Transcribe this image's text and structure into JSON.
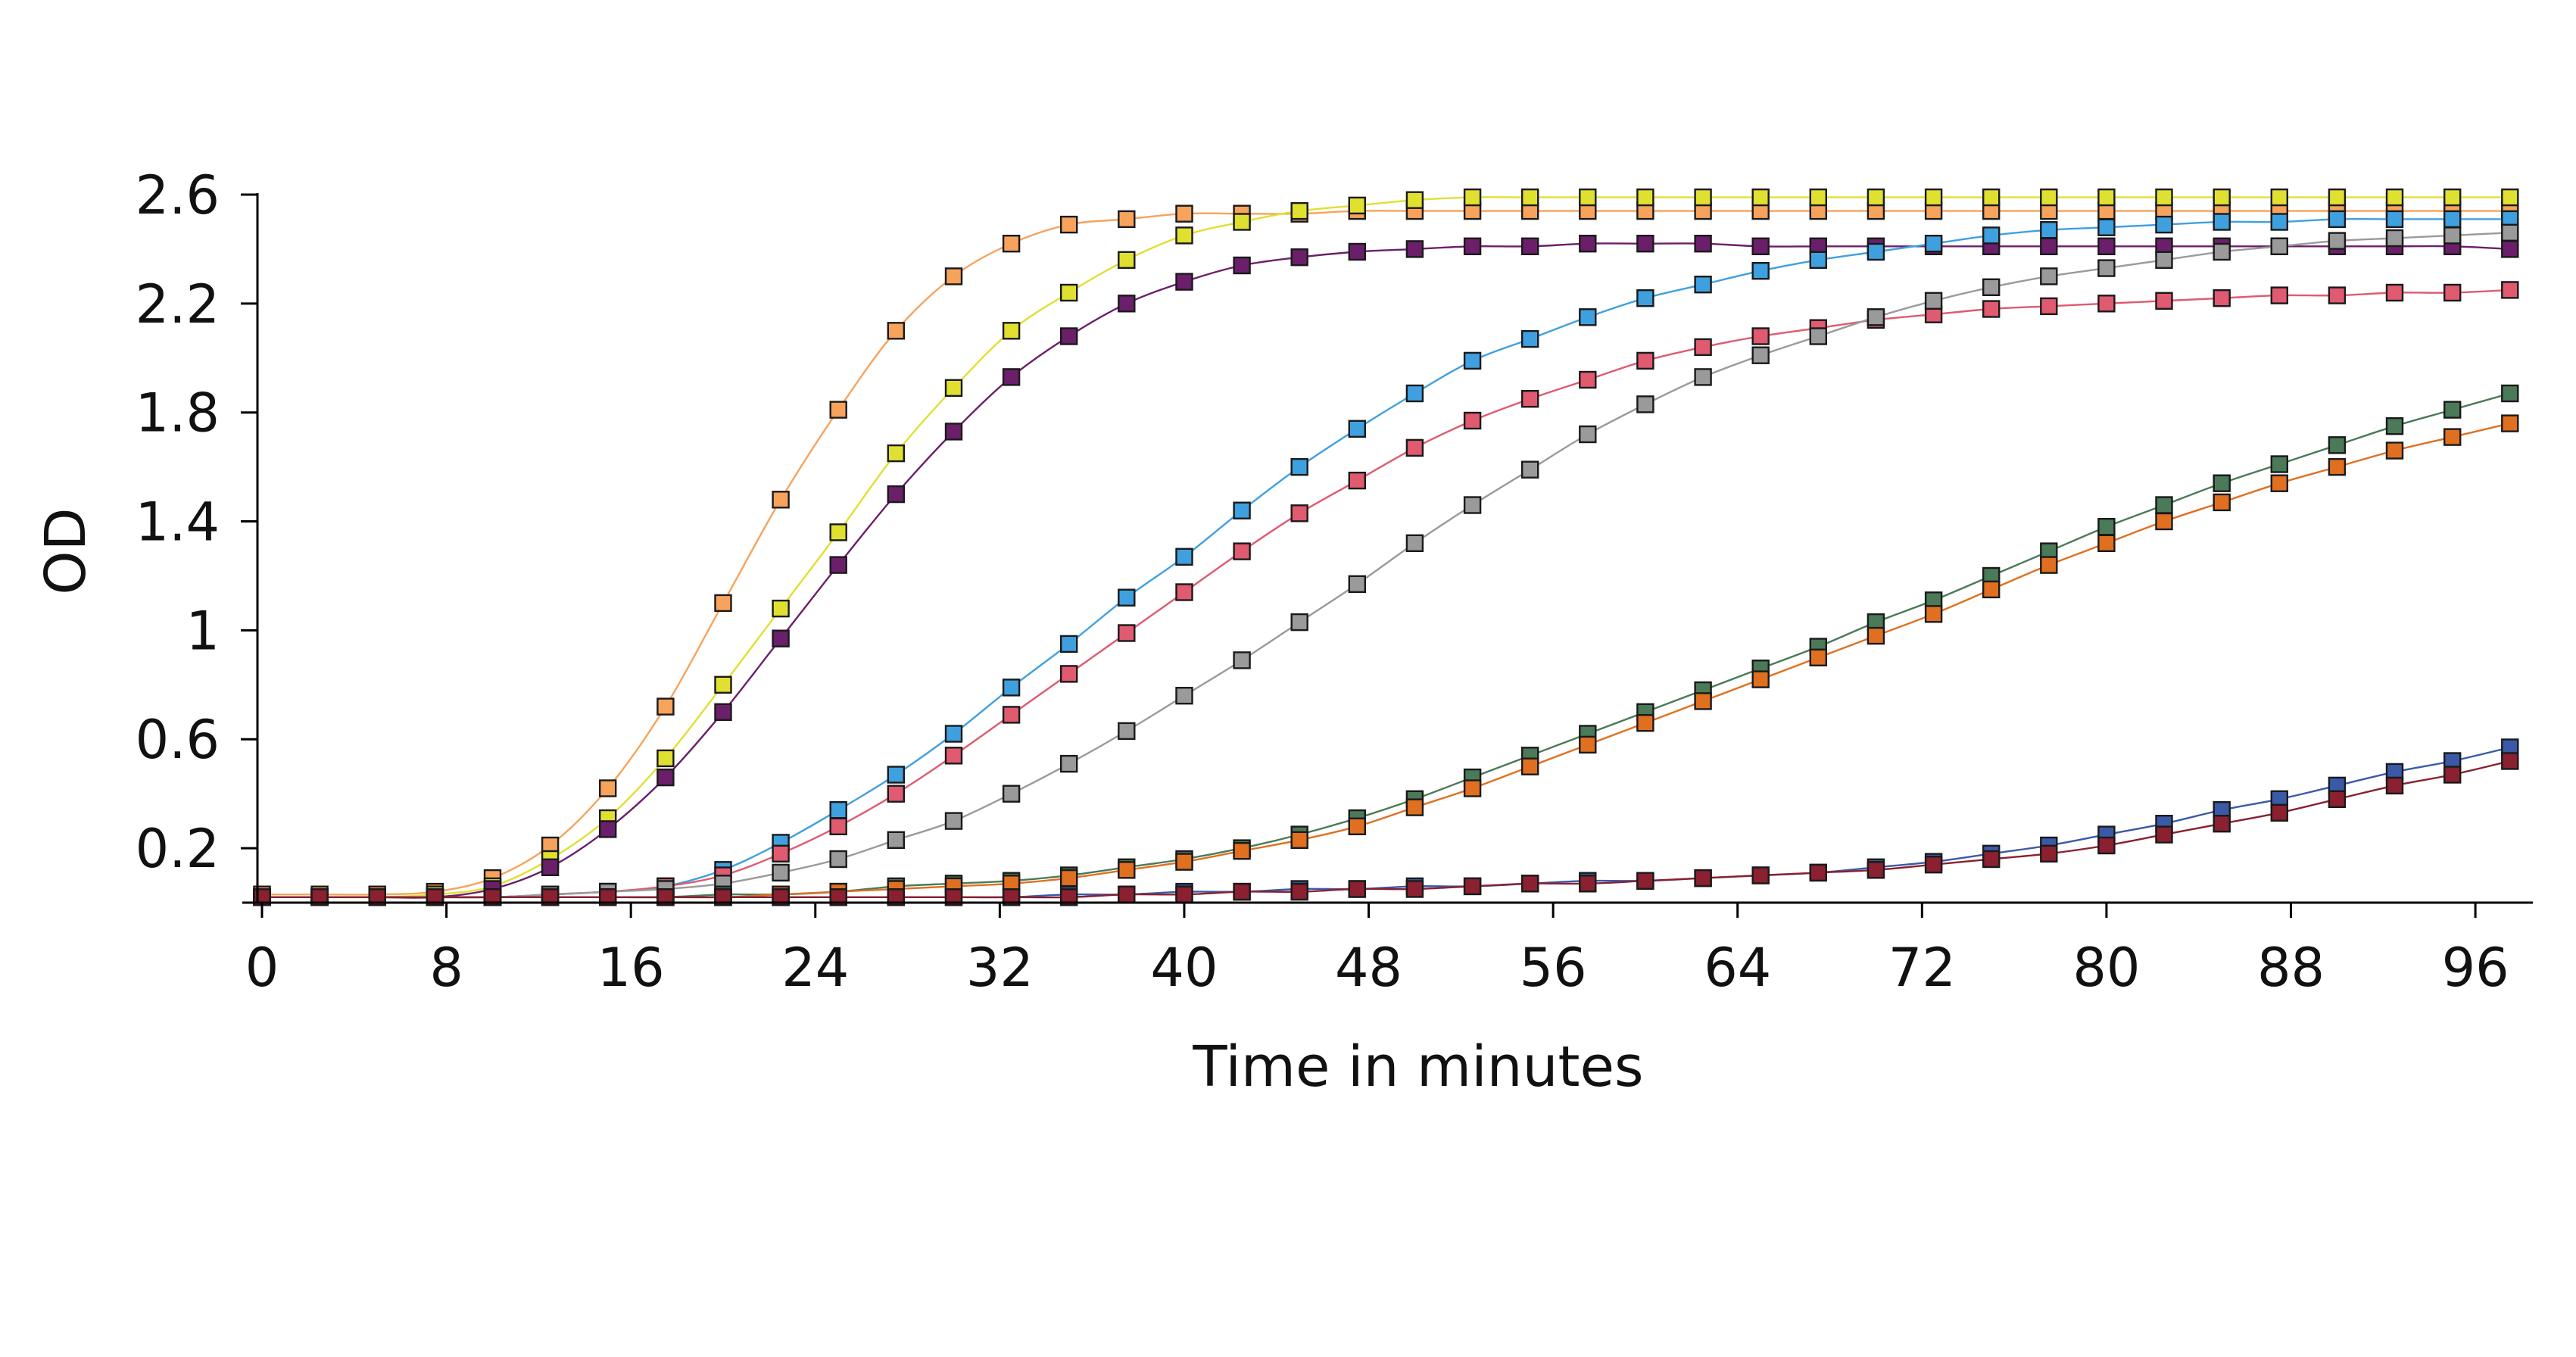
{
  "chart_data": {
    "type": "line",
    "title": "",
    "xlabel": "Time in minutes",
    "ylabel": "OD",
    "xlim": [
      0,
      98
    ],
    "ylim": [
      0,
      2.6
    ],
    "xticks": [
      0,
      8,
      16,
      24,
      32,
      40,
      48,
      56,
      64,
      72,
      80,
      88,
      96
    ],
    "yticks": [
      0.2,
      0.6,
      1,
      1.4,
      1.8,
      2.2,
      2.6
    ],
    "ytick_labels": [
      "0.2",
      "0.6",
      "1",
      "1.4",
      "1.8",
      "2.2",
      "2.6"
    ],
    "grid": false,
    "legend": "none",
    "marker": "square",
    "x": [
      0,
      2.5,
      5,
      7.5,
      10,
      12.5,
      15,
      17.5,
      20,
      22.5,
      25,
      27.5,
      30,
      32.5,
      35,
      37.5,
      40,
      42.5,
      45,
      47.5,
      50,
      52.5,
      55,
      57.5,
      60,
      62.5,
      65,
      67.5,
      70,
      72.5,
      75,
      77.5,
      80,
      82.5,
      85,
      87.5,
      90,
      92.5,
      95,
      97.5
    ],
    "series": [
      {
        "color": "#f7a35c",
        "values": [
          0.03,
          0.03,
          0.03,
          0.04,
          0.09,
          0.21,
          0.42,
          0.72,
          1.1,
          1.48,
          1.81,
          2.1,
          2.3,
          2.42,
          2.49,
          2.51,
          2.53,
          2.53,
          2.53,
          2.54,
          2.54,
          2.54,
          2.54,
          2.54,
          2.54,
          2.54,
          2.54,
          2.54,
          2.54,
          2.54,
          2.54,
          2.54,
          2.54,
          2.54,
          2.54,
          2.54,
          2.54,
          2.54,
          2.54,
          2.54
        ]
      },
      {
        "color": "#e0e030",
        "values": [
          0.02,
          0.02,
          0.02,
          0.03,
          0.06,
          0.16,
          0.31,
          0.53,
          0.8,
          1.08,
          1.36,
          1.65,
          1.89,
          2.1,
          2.24,
          2.36,
          2.45,
          2.5,
          2.54,
          2.56,
          2.58,
          2.59,
          2.59,
          2.59,
          2.59,
          2.59,
          2.59,
          2.59,
          2.59,
          2.59,
          2.59,
          2.59,
          2.59,
          2.59,
          2.59,
          2.59,
          2.59,
          2.59,
          2.59,
          2.59
        ]
      },
      {
        "color": "#6b1f6b",
        "values": [
          0.02,
          0.02,
          0.02,
          0.02,
          0.05,
          0.13,
          0.27,
          0.46,
          0.7,
          0.97,
          1.24,
          1.5,
          1.73,
          1.93,
          2.08,
          2.2,
          2.28,
          2.34,
          2.37,
          2.39,
          2.4,
          2.41,
          2.41,
          2.42,
          2.42,
          2.42,
          2.41,
          2.41,
          2.41,
          2.41,
          2.41,
          2.41,
          2.41,
          2.41,
          2.41,
          2.41,
          2.41,
          2.41,
          2.41,
          2.4
        ]
      },
      {
        "color": "#3fa0e0",
        "values": [
          0.02,
          0.02,
          0.02,
          0.02,
          0.02,
          0.03,
          0.04,
          0.06,
          0.12,
          0.22,
          0.34,
          0.47,
          0.62,
          0.79,
          0.95,
          1.12,
          1.27,
          1.44,
          1.6,
          1.74,
          1.87,
          1.99,
          2.07,
          2.15,
          2.22,
          2.27,
          2.32,
          2.36,
          2.39,
          2.42,
          2.45,
          2.47,
          2.48,
          2.49,
          2.5,
          2.5,
          2.51,
          2.51,
          2.51,
          2.51
        ]
      },
      {
        "color": "#e05a70",
        "values": [
          0.02,
          0.02,
          0.02,
          0.02,
          0.02,
          0.03,
          0.04,
          0.06,
          0.1,
          0.18,
          0.28,
          0.4,
          0.54,
          0.69,
          0.84,
          0.99,
          1.14,
          1.29,
          1.43,
          1.55,
          1.67,
          1.77,
          1.85,
          1.92,
          1.99,
          2.04,
          2.08,
          2.11,
          2.14,
          2.16,
          2.18,
          2.19,
          2.2,
          2.21,
          2.22,
          2.23,
          2.23,
          2.24,
          2.24,
          2.25
        ]
      },
      {
        "color": "#9a9a9a",
        "values": [
          0.02,
          0.02,
          0.02,
          0.02,
          0.02,
          0.03,
          0.04,
          0.05,
          0.07,
          0.11,
          0.16,
          0.23,
          0.3,
          0.4,
          0.51,
          0.63,
          0.76,
          0.89,
          1.03,
          1.17,
          1.32,
          1.46,
          1.59,
          1.72,
          1.83,
          1.93,
          2.01,
          2.08,
          2.15,
          2.21,
          2.26,
          2.3,
          2.33,
          2.36,
          2.39,
          2.41,
          2.43,
          2.44,
          2.45,
          2.46
        ]
      },
      {
        "color": "#4a7a58",
        "values": [
          0.02,
          0.02,
          0.02,
          0.02,
          0.02,
          0.02,
          0.02,
          0.02,
          0.03,
          0.03,
          0.04,
          0.06,
          0.07,
          0.08,
          0.1,
          0.13,
          0.16,
          0.2,
          0.25,
          0.31,
          0.38,
          0.46,
          0.54,
          0.62,
          0.7,
          0.78,
          0.86,
          0.94,
          1.03,
          1.11,
          1.2,
          1.29,
          1.38,
          1.46,
          1.54,
          1.61,
          1.68,
          1.75,
          1.81,
          1.87
        ]
      },
      {
        "color": "#e07020",
        "values": [
          0.02,
          0.02,
          0.02,
          0.02,
          0.02,
          0.02,
          0.02,
          0.02,
          0.02,
          0.03,
          0.04,
          0.05,
          0.06,
          0.07,
          0.09,
          0.12,
          0.15,
          0.19,
          0.23,
          0.28,
          0.35,
          0.42,
          0.5,
          0.58,
          0.66,
          0.74,
          0.82,
          0.9,
          0.98,
          1.06,
          1.15,
          1.24,
          1.32,
          1.4,
          1.47,
          1.54,
          1.6,
          1.66,
          1.71,
          1.76
        ]
      },
      {
        "color": "#3a5aa8",
        "values": [
          0.02,
          0.02,
          0.02,
          0.02,
          0.02,
          0.02,
          0.02,
          0.02,
          0.02,
          0.02,
          0.02,
          0.02,
          0.02,
          0.02,
          0.03,
          0.03,
          0.04,
          0.04,
          0.05,
          0.05,
          0.06,
          0.06,
          0.07,
          0.08,
          0.08,
          0.09,
          0.1,
          0.11,
          0.13,
          0.15,
          0.18,
          0.21,
          0.25,
          0.29,
          0.34,
          0.38,
          0.43,
          0.48,
          0.52,
          0.57
        ]
      },
      {
        "color": "#8a2030",
        "values": [
          0.02,
          0.02,
          0.02,
          0.02,
          0.02,
          0.02,
          0.02,
          0.02,
          0.02,
          0.02,
          0.02,
          0.02,
          0.02,
          0.02,
          0.02,
          0.03,
          0.03,
          0.04,
          0.04,
          0.05,
          0.05,
          0.06,
          0.07,
          0.07,
          0.08,
          0.09,
          0.1,
          0.11,
          0.12,
          0.14,
          0.16,
          0.18,
          0.21,
          0.25,
          0.29,
          0.33,
          0.38,
          0.43,
          0.47,
          0.52
        ]
      }
    ]
  }
}
